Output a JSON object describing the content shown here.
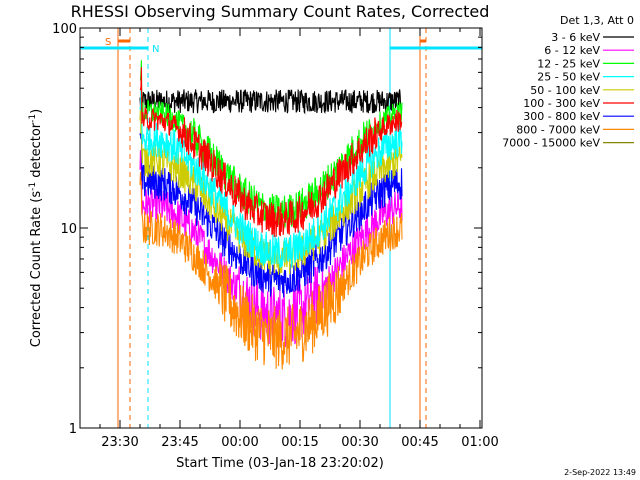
{
  "chart_data": {
    "type": "line",
    "title": "RHESSI Observing Summary Count Rates, Corrected",
    "xlabel": "Start Time (03-Jan-18 23:20:02)",
    "ylabel_main": "Corrected Count Rate (s",
    "ylabel_sup1": "-1",
    "ylabel_mid": " detector",
    "ylabel_sup2": "-1",
    "ylabel_end": ")",
    "yscale": "log",
    "ylim": [
      1,
      100
    ],
    "xlim_minutes": [
      0,
      100.5
    ],
    "yticks": [
      {
        "value": 1,
        "label": "1"
      },
      {
        "value": 10,
        "label": "10"
      },
      {
        "value": 100,
        "label": "100"
      }
    ],
    "xticks": [
      {
        "value": 10,
        "label": "23:30"
      },
      {
        "value": 25,
        "label": "23:45"
      },
      {
        "value": 40,
        "label": "00:00"
      },
      {
        "value": 55,
        "label": "00:15"
      },
      {
        "value": 70,
        "label": "00:30"
      },
      {
        "value": 85,
        "label": "00:45"
      },
      {
        "value": 100,
        "label": "01:00"
      }
    ],
    "legend_title": "Det 1,3, Att 0",
    "legend_position": "right",
    "series": [
      {
        "name": "3 - 6 keV",
        "color": "#000000",
        "edge": 43,
        "mid": 43
      },
      {
        "name": "6 - 12 keV",
        "color": "#ff00ff",
        "edge": 13,
        "mid": 3.6
      },
      {
        "name": "12 - 25 keV",
        "color": "#00ff00",
        "edge": 38,
        "mid": 12
      },
      {
        "name": "25 - 50 keV",
        "color": "#00ffff",
        "edge": 28,
        "mid": 7.5
      },
      {
        "name": "50 - 100 keV",
        "color": "#cccc00",
        "edge": 22,
        "mid": 7
      },
      {
        "name": "100 - 300 keV",
        "color": "#ff0000",
        "edge": 35,
        "mid": 11
      },
      {
        "name": "300 - 800 keV",
        "color": "#0000ff",
        "edge": 17,
        "mid": 5.5
      },
      {
        "name": "800 - 7000 keV",
        "color": "#ff8800",
        "edge": 10,
        "mid": 2.8
      },
      {
        "name": "7000 - 15000 keV",
        "color": "#888800",
        "edge": 0,
        "mid": 0
      }
    ],
    "data_range_minutes": [
      15,
      80.5
    ],
    "saa_markers": {
      "label": "S",
      "color": "#ff6600",
      "solid_minutes": [
        9.5,
        85
      ],
      "dashed_minutes": [
        12.5,
        86.5
      ]
    },
    "night_markers": {
      "label": "N",
      "color": "#00e5ff",
      "solid_minutes": [
        0,
        77.5
      ],
      "dashed_minutes": [
        17
      ],
      "end_minutes": 100.5
    },
    "timestamp": "2-Sep-2022 13:49"
  }
}
